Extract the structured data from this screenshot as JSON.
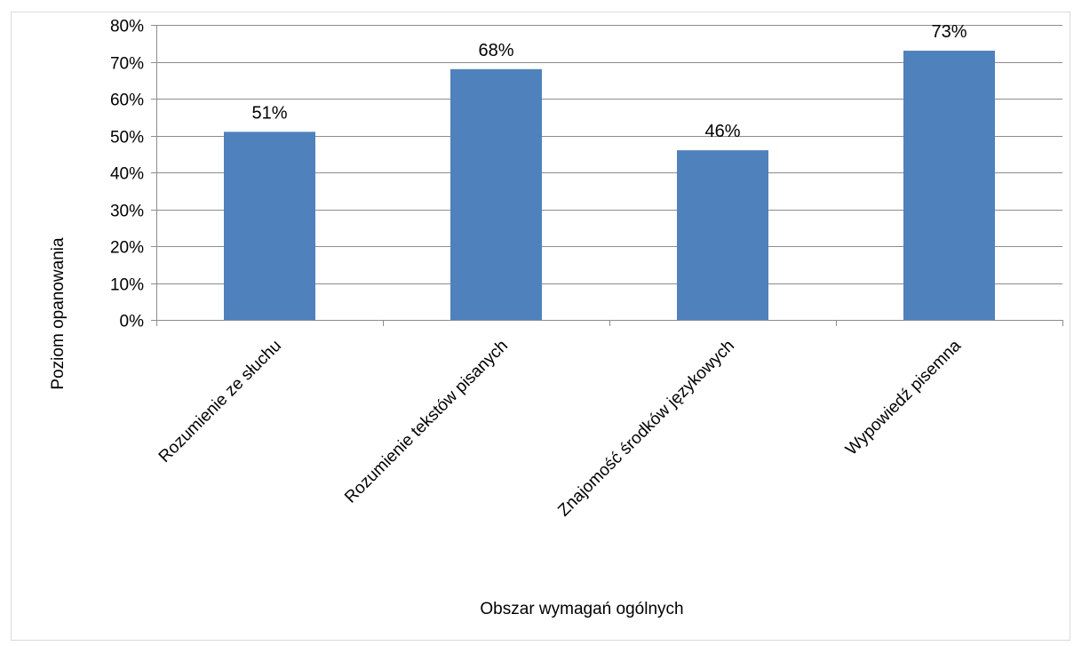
{
  "chart_data": {
    "type": "bar",
    "title": "",
    "xlabel": "Obszar wymagań ogólnych",
    "ylabel": "Poziom opanowania",
    "categories": [
      "Rozumienie ze słuchu",
      "Rozumienie tekstów pisanych",
      "Znajomość środków językowych",
      "Wypowiedź pisemna"
    ],
    "values": [
      51,
      68,
      46,
      73
    ],
    "data_labels": [
      "51%",
      "68%",
      "46%",
      "73%"
    ],
    "ylim": [
      0,
      80
    ],
    "yticks": [
      0,
      10,
      20,
      30,
      40,
      50,
      60,
      70,
      80
    ],
    "ytick_labels": [
      "0%",
      "10%",
      "20%",
      "30%",
      "40%",
      "50%",
      "60%",
      "70%",
      "80%"
    ],
    "grid": true,
    "legend": "none",
    "bar_color": "#4f81bd"
  }
}
